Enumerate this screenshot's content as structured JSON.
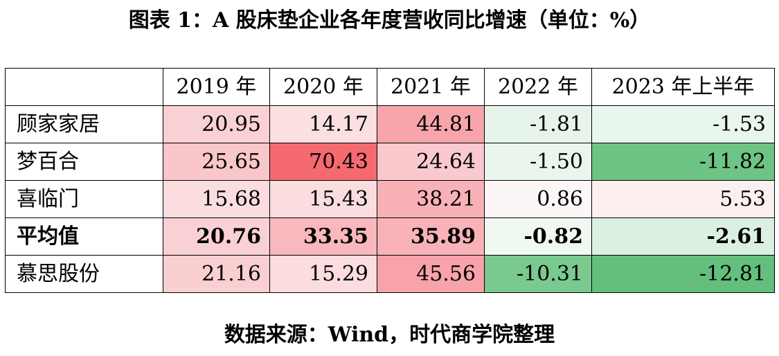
{
  "title": "图表 1：A 股床垫企业各年度营收同比增速（单位：%）",
  "source": "数据来源：Wind，时代商学院整理",
  "table": {
    "corner": "",
    "headers": [
      "2019 年",
      "2020 年",
      "2021 年",
      "2022 年",
      "2023 年上半年"
    ],
    "rows": [
      {
        "name": "顾家家居",
        "bold": false,
        "values": [
          "20.95",
          "14.17",
          "44.81",
          "-1.81",
          "-1.53"
        ],
        "colors": [
          "#f9d0d3",
          "#fbdfe1",
          "#f7a5ab",
          "#e6f4eb",
          "#e9f6ed"
        ]
      },
      {
        "name": "梦百合",
        "bold": false,
        "values": [
          "25.65",
          "70.43",
          "24.64",
          "-1.50",
          "-11.82"
        ],
        "colors": [
          "#f9c6ca",
          "#f56a6f",
          "#f9c9cd",
          "#e9f5ed",
          "#6ec485"
        ]
      },
      {
        "name": "喜临门",
        "bold": false,
        "values": [
          "15.68",
          "15.43",
          "38.21",
          "0.86",
          "5.53"
        ],
        "colors": [
          "#fbdcdf",
          "#fbdde0",
          "#f8b1b6",
          "#fdf6f7",
          "#fbeff0"
        ]
      },
      {
        "name": "平均值",
        "bold": true,
        "values": [
          "20.76",
          "33.35",
          "35.89",
          "-0.82",
          "-2.61"
        ],
        "colors": [
          "#f9d1d4",
          "#f8b8bd",
          "#f8b3b8",
          "#eff9f2",
          "#dcf0e2"
        ]
      },
      {
        "name": "慕思股份",
        "bold": false,
        "values": [
          "21.16",
          "15.29",
          "45.56",
          "-10.31",
          "-12.81"
        ],
        "colors": [
          "#f9cfd2",
          "#fbdde0",
          "#f7a3a9",
          "#7ac98f",
          "#64bf7c"
        ]
      }
    ]
  }
}
